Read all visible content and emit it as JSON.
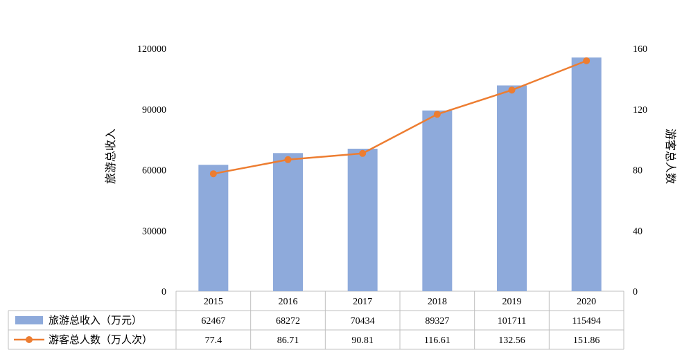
{
  "chart_data": {
    "type": "bar",
    "categories": [
      "2015",
      "2016",
      "2017",
      "2018",
      "2019",
      "2020"
    ],
    "series": [
      {
        "name": "旅游总收入（万元）",
        "type": "bar",
        "axis": "left",
        "color": "#8eaadb",
        "values": [
          62467,
          68272,
          70434,
          89327,
          101711,
          115494
        ],
        "labels": [
          "62467",
          "68272",
          "70434",
          "89327",
          "101711",
          "115494"
        ]
      },
      {
        "name": "游客总人数（万人次）",
        "type": "line",
        "axis": "right",
        "color": "#ed7d31",
        "values": [
          77.4,
          86.71,
          90.81,
          116.61,
          132.56,
          151.86
        ],
        "labels": [
          "77.4",
          "86.71",
          "90.81",
          "116.61",
          "132.56",
          "151.86"
        ]
      }
    ],
    "ylabel": "旅游总收入",
    "y2label": "游客总人数",
    "ylim": [
      0,
      120000
    ],
    "y2lim": [
      0,
      160
    ],
    "yticks": [
      "0",
      "30000",
      "60000",
      "90000",
      "120000"
    ],
    "y2ticks": [
      "0",
      "40",
      "80",
      "120",
      "160"
    ],
    "grid": false,
    "legend": "data-table"
  }
}
